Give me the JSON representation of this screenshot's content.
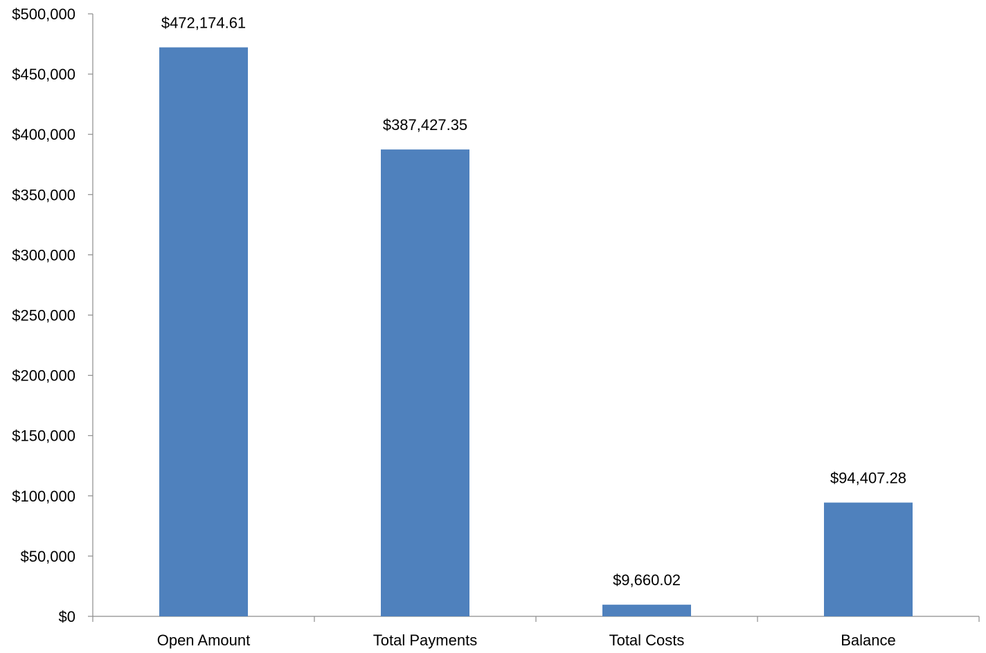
{
  "chart_data": {
    "type": "bar",
    "title": "",
    "xlabel": "",
    "ylabel": "",
    "categories": [
      "Open Amount",
      "Total Payments",
      "Total Costs",
      "Balance"
    ],
    "values": [
      472174.61,
      387427.35,
      9660.02,
      94407.28
    ],
    "data_labels": [
      "$472,174.61",
      "$387,427.35",
      "$9,660.02",
      "$94,407.28"
    ],
    "ylim": [
      0,
      500000
    ],
    "y_ticks": [
      0,
      50000,
      100000,
      150000,
      200000,
      250000,
      300000,
      350000,
      400000,
      450000,
      500000
    ],
    "y_tick_labels": [
      "$0",
      "$50,000",
      "$100,000",
      "$150,000",
      "$200,000",
      "$250,000",
      "$300,000",
      "$350,000",
      "$400,000",
      "$450,000",
      "$500,000"
    ],
    "grid": false,
    "legend": "none",
    "bar_color": "#4f81bd",
    "axis_color": "#8c8c8c"
  }
}
